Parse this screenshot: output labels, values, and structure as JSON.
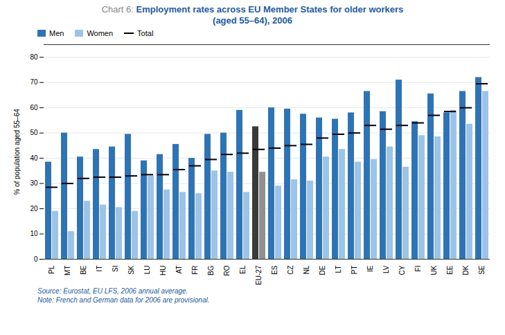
{
  "chart_data": {
    "type": "bar",
    "title": "Chart 6: Employment rates across EU Member States for older workers",
    "subtitle": "(aged 55–64), 2006",
    "ylabel": "% of population aged 55–64",
    "annotations": [
      "Source: Eurostat, EU LFS, 2006 annual average.",
      "Note: French and German data for 2006 are provisional."
    ],
    "categories": [
      "PL",
      "MT",
      "BE",
      "IT",
      "SI",
      "SK",
      "LU",
      "HU",
      "AT",
      "FR",
      "BG",
      "RO",
      "EL",
      "EU-27",
      "ES",
      "CZ",
      "NL",
      "DE",
      "LT",
      "PT",
      "IE",
      "LV",
      "CY",
      "FI",
      "UK",
      "EE",
      "DK",
      "SE"
    ],
    "series": [
      {
        "name": "Men",
        "type": "bar",
        "color": "#2E74B5",
        "colors": [
          "#2E74B5",
          "#2E74B5",
          "#2E74B5",
          "#2E74B5",
          "#2E74B5",
          "#2E74B5",
          "#2E74B5",
          "#2E74B5",
          "#2E74B5",
          "#2E74B5",
          "#2E74B5",
          "#2E74B5",
          "#2E74B5",
          "#3A3A3A",
          "#2E74B5",
          "#2E74B5",
          "#2E74B5",
          "#2E74B5",
          "#2E74B5",
          "#2E74B5",
          "#2E74B5",
          "#2E74B5",
          "#2E74B5",
          "#2E74B5",
          "#2E74B5",
          "#2E74B5",
          "#2E74B5",
          "#2E74B5"
        ],
        "values": [
          38.5,
          50.0,
          40.5,
          43.5,
          44.5,
          49.5,
          39.0,
          41.5,
          45.5,
          40.0,
          49.5,
          50.0,
          59.0,
          52.5,
          60.0,
          59.5,
          57.5,
          56.0,
          55.5,
          58.0,
          66.5,
          58.5,
          71.0,
          54.5,
          65.5,
          58.0,
          66.5,
          72.0
        ]
      },
      {
        "name": "Women",
        "type": "bar",
        "color": "#9DC3E6",
        "colors": [
          "#9DC3E6",
          "#9DC3E6",
          "#9DC3E6",
          "#9DC3E6",
          "#9DC3E6",
          "#9DC3E6",
          "#9DC3E6",
          "#9DC3E6",
          "#9DC3E6",
          "#9DC3E6",
          "#9DC3E6",
          "#9DC3E6",
          "#9DC3E6",
          "#909090",
          "#9DC3E6",
          "#9DC3E6",
          "#9DC3E6",
          "#9DC3E6",
          "#9DC3E6",
          "#9DC3E6",
          "#9DC3E6",
          "#9DC3E6",
          "#9DC3E6",
          "#9DC3E6",
          "#9DC3E6",
          "#9DC3E6",
          "#9DC3E6",
          "#9DC3E6"
        ],
        "values": [
          19.0,
          11.0,
          23.0,
          21.5,
          20.5,
          19.0,
          33.0,
          27.5,
          26.5,
          26.0,
          35.0,
          34.5,
          26.5,
          34.5,
          29.0,
          31.5,
          31.0,
          40.5,
          43.5,
          38.5,
          39.5,
          44.5,
          36.5,
          49.0,
          48.5,
          59.0,
          53.5,
          66.5
        ]
      },
      {
        "name": "Total",
        "type": "tick",
        "color": "#000000",
        "values": [
          28.5,
          30.0,
          32.0,
          32.5,
          32.5,
          33.0,
          33.5,
          33.5,
          35.5,
          37.0,
          39.5,
          41.5,
          42.0,
          43.5,
          44.0,
          45.0,
          45.5,
          48.0,
          49.5,
          50.0,
          53.0,
          51.5,
          53.0,
          54.0,
          57.0,
          58.5,
          60.0,
          69.5
        ]
      }
    ],
    "ylim": [
      0,
      85
    ],
    "yticks": [
      0,
      10,
      20,
      30,
      40,
      50,
      60,
      70,
      80
    ],
    "grid": true,
    "legend": "upper left"
  }
}
